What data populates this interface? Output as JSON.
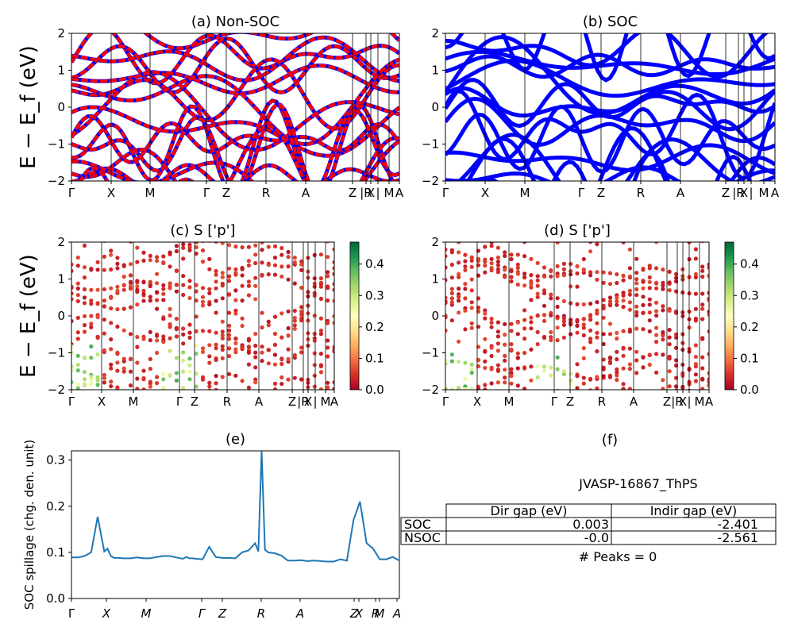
{
  "figure": {
    "ylabel_bands": "E − E_f (eV)",
    "ylabel_spillage": "SOC spillage (chg. den. unit)"
  },
  "chart_data": [
    {
      "id": "a",
      "type": "line",
      "title": "(a) Non-SOC",
      "ylim": [
        -2,
        2
      ],
      "yticks": [
        "2",
        "1",
        "0",
        "−1",
        "−2"
      ],
      "xticks": [
        "Γ",
        "X",
        "M",
        "Γ",
        "Z",
        "R",
        "A",
        "Z",
        "|R",
        "X",
        "|",
        "M",
        "A"
      ],
      "colors": {
        "line": "#0000ff",
        "dash": "#ff0000"
      }
    },
    {
      "id": "b",
      "type": "line",
      "title": "(b) SOC",
      "ylim": [
        -2,
        2
      ],
      "yticks": [
        "2",
        "1",
        "0",
        "−1",
        "−2"
      ],
      "xticks": [
        "Γ",
        "X",
        "M",
        "Γ",
        "Z",
        "R",
        "A",
        "Z",
        "|R",
        "X",
        "|",
        "M",
        "A"
      ],
      "colors": {
        "line": "#0000ff"
      }
    },
    {
      "id": "c",
      "type": "scatter",
      "title": "(c)  S ['p']",
      "ylim": [
        -2,
        2
      ],
      "yticks": [
        "2",
        "1",
        "0",
        "−1",
        "−2"
      ],
      "xticks": [
        "Γ",
        "X",
        "M",
        "Γ",
        "Z",
        "R",
        "A",
        "Z",
        "|R",
        "X",
        "|",
        "M",
        "A"
      ],
      "colorbar": {
        "cmap": "RdYlGn",
        "range": [
          0.0,
          0.47
        ],
        "ticks": [
          "0.0",
          "0.1",
          "0.2",
          "0.3",
          "0.4"
        ]
      }
    },
    {
      "id": "d",
      "type": "scatter",
      "title": "(d) S ['p']",
      "ylim": [
        -2,
        2
      ],
      "yticks": [
        "2",
        "1",
        "0",
        "−1",
        "−2"
      ],
      "xticks": [
        "Γ",
        "X",
        "M",
        "Γ",
        "Z",
        "R",
        "A",
        "Z",
        "|R",
        "X",
        "|",
        "M",
        "A"
      ],
      "colorbar": {
        "cmap": "RdYlGn",
        "range": [
          0.0,
          0.47
        ],
        "ticks": [
          "0.0",
          "0.1",
          "0.2",
          "0.3",
          "0.4"
        ]
      }
    },
    {
      "id": "e",
      "type": "line",
      "title": "(e)",
      "ylabel": "SOC spillage (chg. den. unit)",
      "ylim": [
        0.0,
        0.32
      ],
      "yticks": [
        "0.3",
        "0.2",
        "0.1",
        "0.0"
      ],
      "xticks": [
        "Γ",
        "X",
        "M",
        "Γ",
        "Z",
        "R",
        "A",
        "Z",
        "X",
        "R",
        "M",
        "A"
      ],
      "x": [
        0,
        2,
        4,
        6,
        8,
        10,
        11,
        12,
        13,
        14,
        16,
        18,
        20,
        22,
        24,
        26,
        28,
        30,
        32,
        34,
        35,
        36,
        37,
        38,
        40,
        42,
        44,
        46,
        48,
        50,
        52,
        54,
        55,
        56,
        57,
        58,
        59,
        60,
        62,
        64,
        66,
        68,
        70,
        72,
        74,
        76,
        78,
        80,
        82,
        84,
        86,
        88,
        90,
        92,
        94,
        96,
        98,
        100
      ],
      "y": [
        0.089,
        0.089,
        0.092,
        0.1,
        0.177,
        0.102,
        0.108,
        0.092,
        0.088,
        0.088,
        0.087,
        0.087,
        0.089,
        0.087,
        0.087,
        0.09,
        0.092,
        0.092,
        0.089,
        0.086,
        0.09,
        0.087,
        0.087,
        0.086,
        0.085,
        0.112,
        0.09,
        0.088,
        0.088,
        0.087,
        0.1,
        0.104,
        0.112,
        0.12,
        0.102,
        0.32,
        0.106,
        0.1,
        0.098,
        0.093,
        0.082,
        0.082,
        0.083,
        0.081,
        0.082,
        0.081,
        0.08,
        0.08,
        0.085,
        0.082,
        0.17,
        0.21,
        0.12,
        0.108,
        0.085,
        0.085,
        0.09,
        0.082
      ],
      "colors": {
        "line": "#1f77b4"
      }
    }
  ],
  "table_panel": {
    "title": "(f)",
    "label": "JVASP-16867_ThPS",
    "headers": [
      "",
      "Dir gap (eV)",
      "Indir gap (eV)"
    ],
    "rows": [
      [
        "SOC",
        "0.003",
        "-2.401"
      ],
      [
        "NSOC",
        "-0.0",
        "-2.561"
      ]
    ],
    "footer": "# Peaks = 0"
  }
}
